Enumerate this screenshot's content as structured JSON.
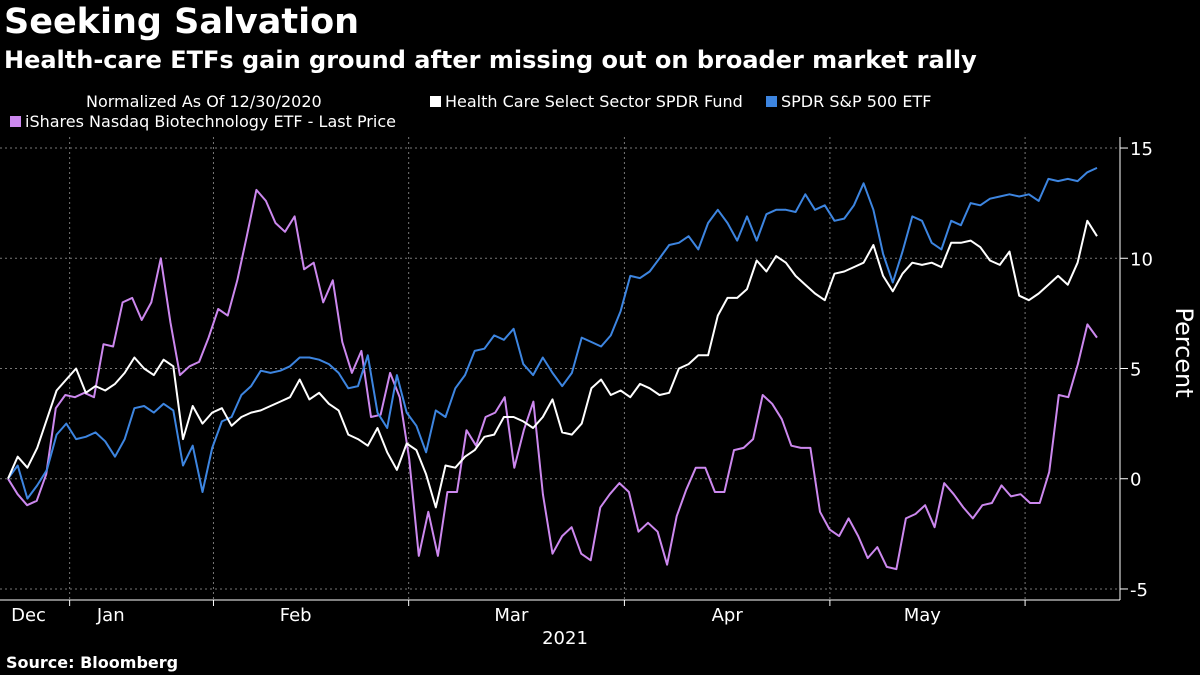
{
  "header": {
    "title": "Seeking Salvation",
    "subtitle": "Health-care ETFs gain ground after missing out on broader market rally"
  },
  "legend": {
    "note": "Normalized As Of 12/30/2020"
  },
  "source": "Source: Bloomberg",
  "chart_data": {
    "type": "line",
    "ylabel": "Percent",
    "ylim": [
      -5.5,
      15.5
    ],
    "yticks": [
      15,
      10,
      5,
      0,
      -5
    ],
    "xlim": [
      0,
      106
    ],
    "x_labels": [
      {
        "label": "Dec",
        "at": 2
      },
      {
        "label": "Jan",
        "at": 10
      },
      {
        "label": "Feb",
        "at": 28
      },
      {
        "label": "Mar",
        "at": 49
      },
      {
        "label": "Apr",
        "at": 70
      },
      {
        "label": "May",
        "at": 89
      }
    ],
    "x_year_label": "2021",
    "grid": "dotted",
    "legend_position": "top-left",
    "series": [
      {
        "name": "Health Care Select Sector SPDR Fund",
        "color": "#ffffff",
        "values": [
          0,
          1,
          0.5,
          1.4,
          2.7,
          4,
          4.5,
          5,
          3.9,
          4.2,
          4,
          4.3,
          4.8,
          5.5,
          5,
          4.7,
          5.4,
          5.1,
          1.8,
          3.3,
          2.5,
          3,
          3.2,
          2.4,
          2.8,
          3,
          3.1,
          3.3,
          3.5,
          3.7,
          4.5,
          3.6,
          3.9,
          3.4,
          3.1,
          2,
          1.8,
          1.5,
          2.3,
          1.2,
          0.4,
          1.6,
          1.3,
          0.2,
          -1.3,
          0.6,
          0.5,
          1,
          1.3,
          1.9,
          2,
          2.8,
          2.8,
          2.6,
          2.3,
          2.8,
          3.6,
          2.1,
          2,
          2.5,
          4.1,
          4.5,
          3.8,
          4,
          3.7,
          4.3,
          4.1,
          3.8,
          3.9,
          5,
          5.2,
          5.6,
          5.6,
          7.4,
          8.2,
          8.2,
          8.6,
          9.9,
          9.4,
          10.1,
          9.8,
          9.2,
          8.8,
          8.4,
          8.1,
          9.3,
          9.4,
          9.6,
          9.8,
          10.6,
          9.2,
          8.5,
          9.3,
          9.8,
          9.7,
          9.8,
          9.6,
          10.7,
          10.7,
          10.8,
          10.5,
          9.9,
          9.7,
          10.3,
          8.3,
          8.1,
          8.4,
          8.8,
          9.2,
          8.8,
          9.8,
          11.7,
          11
        ]
      },
      {
        "name": "SPDR S&P 500 ETF",
        "color": "#3d85e0",
        "values": [
          0,
          0.6,
          -0.9,
          -0.3,
          0.4,
          2,
          2.5,
          1.8,
          1.9,
          2.1,
          1.7,
          1,
          1.8,
          3.2,
          3.3,
          3,
          3.4,
          3.1,
          0.6,
          1.5,
          -0.6,
          1.4,
          2.6,
          2.8,
          3.8,
          4.2,
          4.9,
          4.8,
          4.9,
          5.1,
          5.5,
          5.5,
          5.4,
          5.2,
          4.8,
          4.1,
          4.2,
          5.6,
          3,
          2.3,
          4.7,
          3,
          2.4,
          1.2,
          3.1,
          2.8,
          4.1,
          4.7,
          5.8,
          5.9,
          6.5,
          6.3,
          6.8,
          5.2,
          4.7,
          5.5,
          4.8,
          4.2,
          4.8,
          6.4,
          6.2,
          6,
          6.5,
          7.6,
          9.2,
          9.1,
          9.4,
          10,
          10.6,
          10.7,
          11,
          10.4,
          11.6,
          12.2,
          11.6,
          10.8,
          11.9,
          10.8,
          12,
          12.2,
          12.2,
          12.1,
          12.9,
          12.2,
          12.4,
          11.7,
          11.8,
          12.4,
          13.4,
          12.2,
          10.2,
          8.9,
          10.3,
          11.9,
          11.7,
          10.7,
          10.4,
          11.7,
          11.5,
          12.5,
          12.4,
          12.7,
          12.8,
          12.9,
          12.8,
          12.9,
          12.6,
          13.6,
          13.5,
          13.6,
          13.5,
          13.9,
          14.1
        ]
      },
      {
        "name": "iShares Nasdaq Biotechnology ETF - Last Price",
        "color": "#cc88ee",
        "values": [
          0,
          -0.7,
          -1.2,
          -1,
          0.2,
          3.2,
          3.8,
          3.7,
          3.9,
          3.7,
          6.1,
          6,
          8,
          8.2,
          7.2,
          8,
          10,
          7.1,
          4.7,
          5.1,
          5.3,
          6.4,
          7.7,
          7.4,
          9,
          11,
          13.1,
          12.6,
          11.6,
          11.2,
          11.9,
          9.5,
          9.8,
          8,
          9,
          6.2,
          4.8,
          5.8,
          2.8,
          2.9,
          4.8,
          3.7,
          0.9,
          -3.5,
          -1.5,
          -3.5,
          -0.6,
          -0.6,
          2.2,
          1.5,
          2.8,
          3,
          3.7,
          0.5,
          2.2,
          3.5,
          -0.7,
          -3.4,
          -2.6,
          -2.2,
          -3.4,
          -3.7,
          -1.3,
          -0.7,
          -0.2,
          -0.6,
          -2.4,
          -2,
          -2.4,
          -3.9,
          -1.7,
          -0.5,
          0.5,
          0.5,
          -0.6,
          -0.6,
          1.3,
          1.4,
          1.8,
          3.8,
          3.4,
          2.7,
          1.5,
          1.4,
          1.4,
          -1.5,
          -2.3,
          -2.6,
          -1.8,
          -2.6,
          -3.6,
          -3.1,
          -4,
          -4.1,
          -1.8,
          -1.6,
          -1.2,
          -2.2,
          -0.2,
          -0.7,
          -1.3,
          -1.8,
          -1.2,
          -1.1,
          -0.3,
          -0.8,
          -0.7,
          -1.1,
          -1.1,
          0.3,
          3.8,
          3.7,
          5.2,
          7,
          6.4
        ]
      }
    ]
  }
}
